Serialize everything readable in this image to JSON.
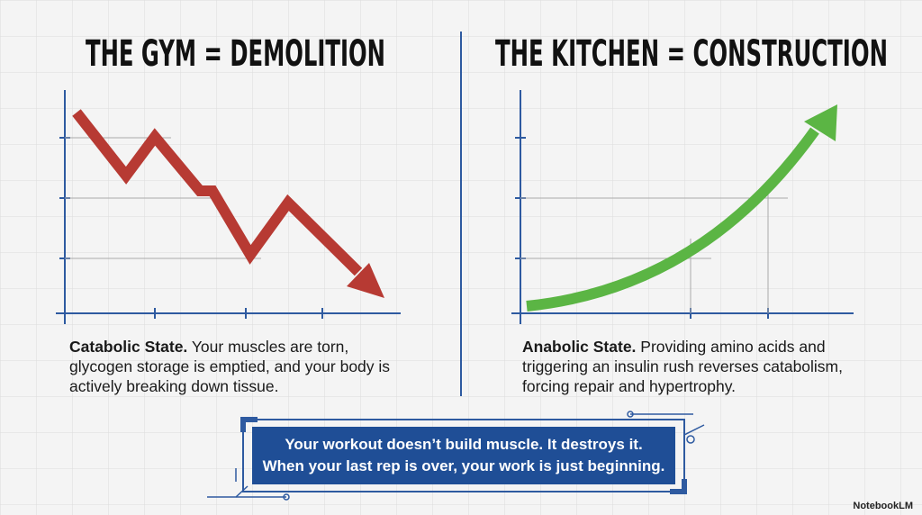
{
  "left": {
    "title": "THE GYM = DEMOLITION",
    "lead": "Catabolic State.",
    "body": "Your muscles are torn, glycogen storage is emptied, and your body is actively breaking down tissue."
  },
  "right": {
    "title": "THE KITCHEN = CONSTRUCTION",
    "lead": "Anabolic State.",
    "body": "Providing amino acids and triggering an insulin rush reverses catabolism, forcing repair and hypertrophy."
  },
  "callout": {
    "lines": [
      "Your workout doesn’t build muscle. It destroys it.",
      "When your last rep is over, your work is just beginning."
    ]
  },
  "watermark": "NotebookLM"
}
